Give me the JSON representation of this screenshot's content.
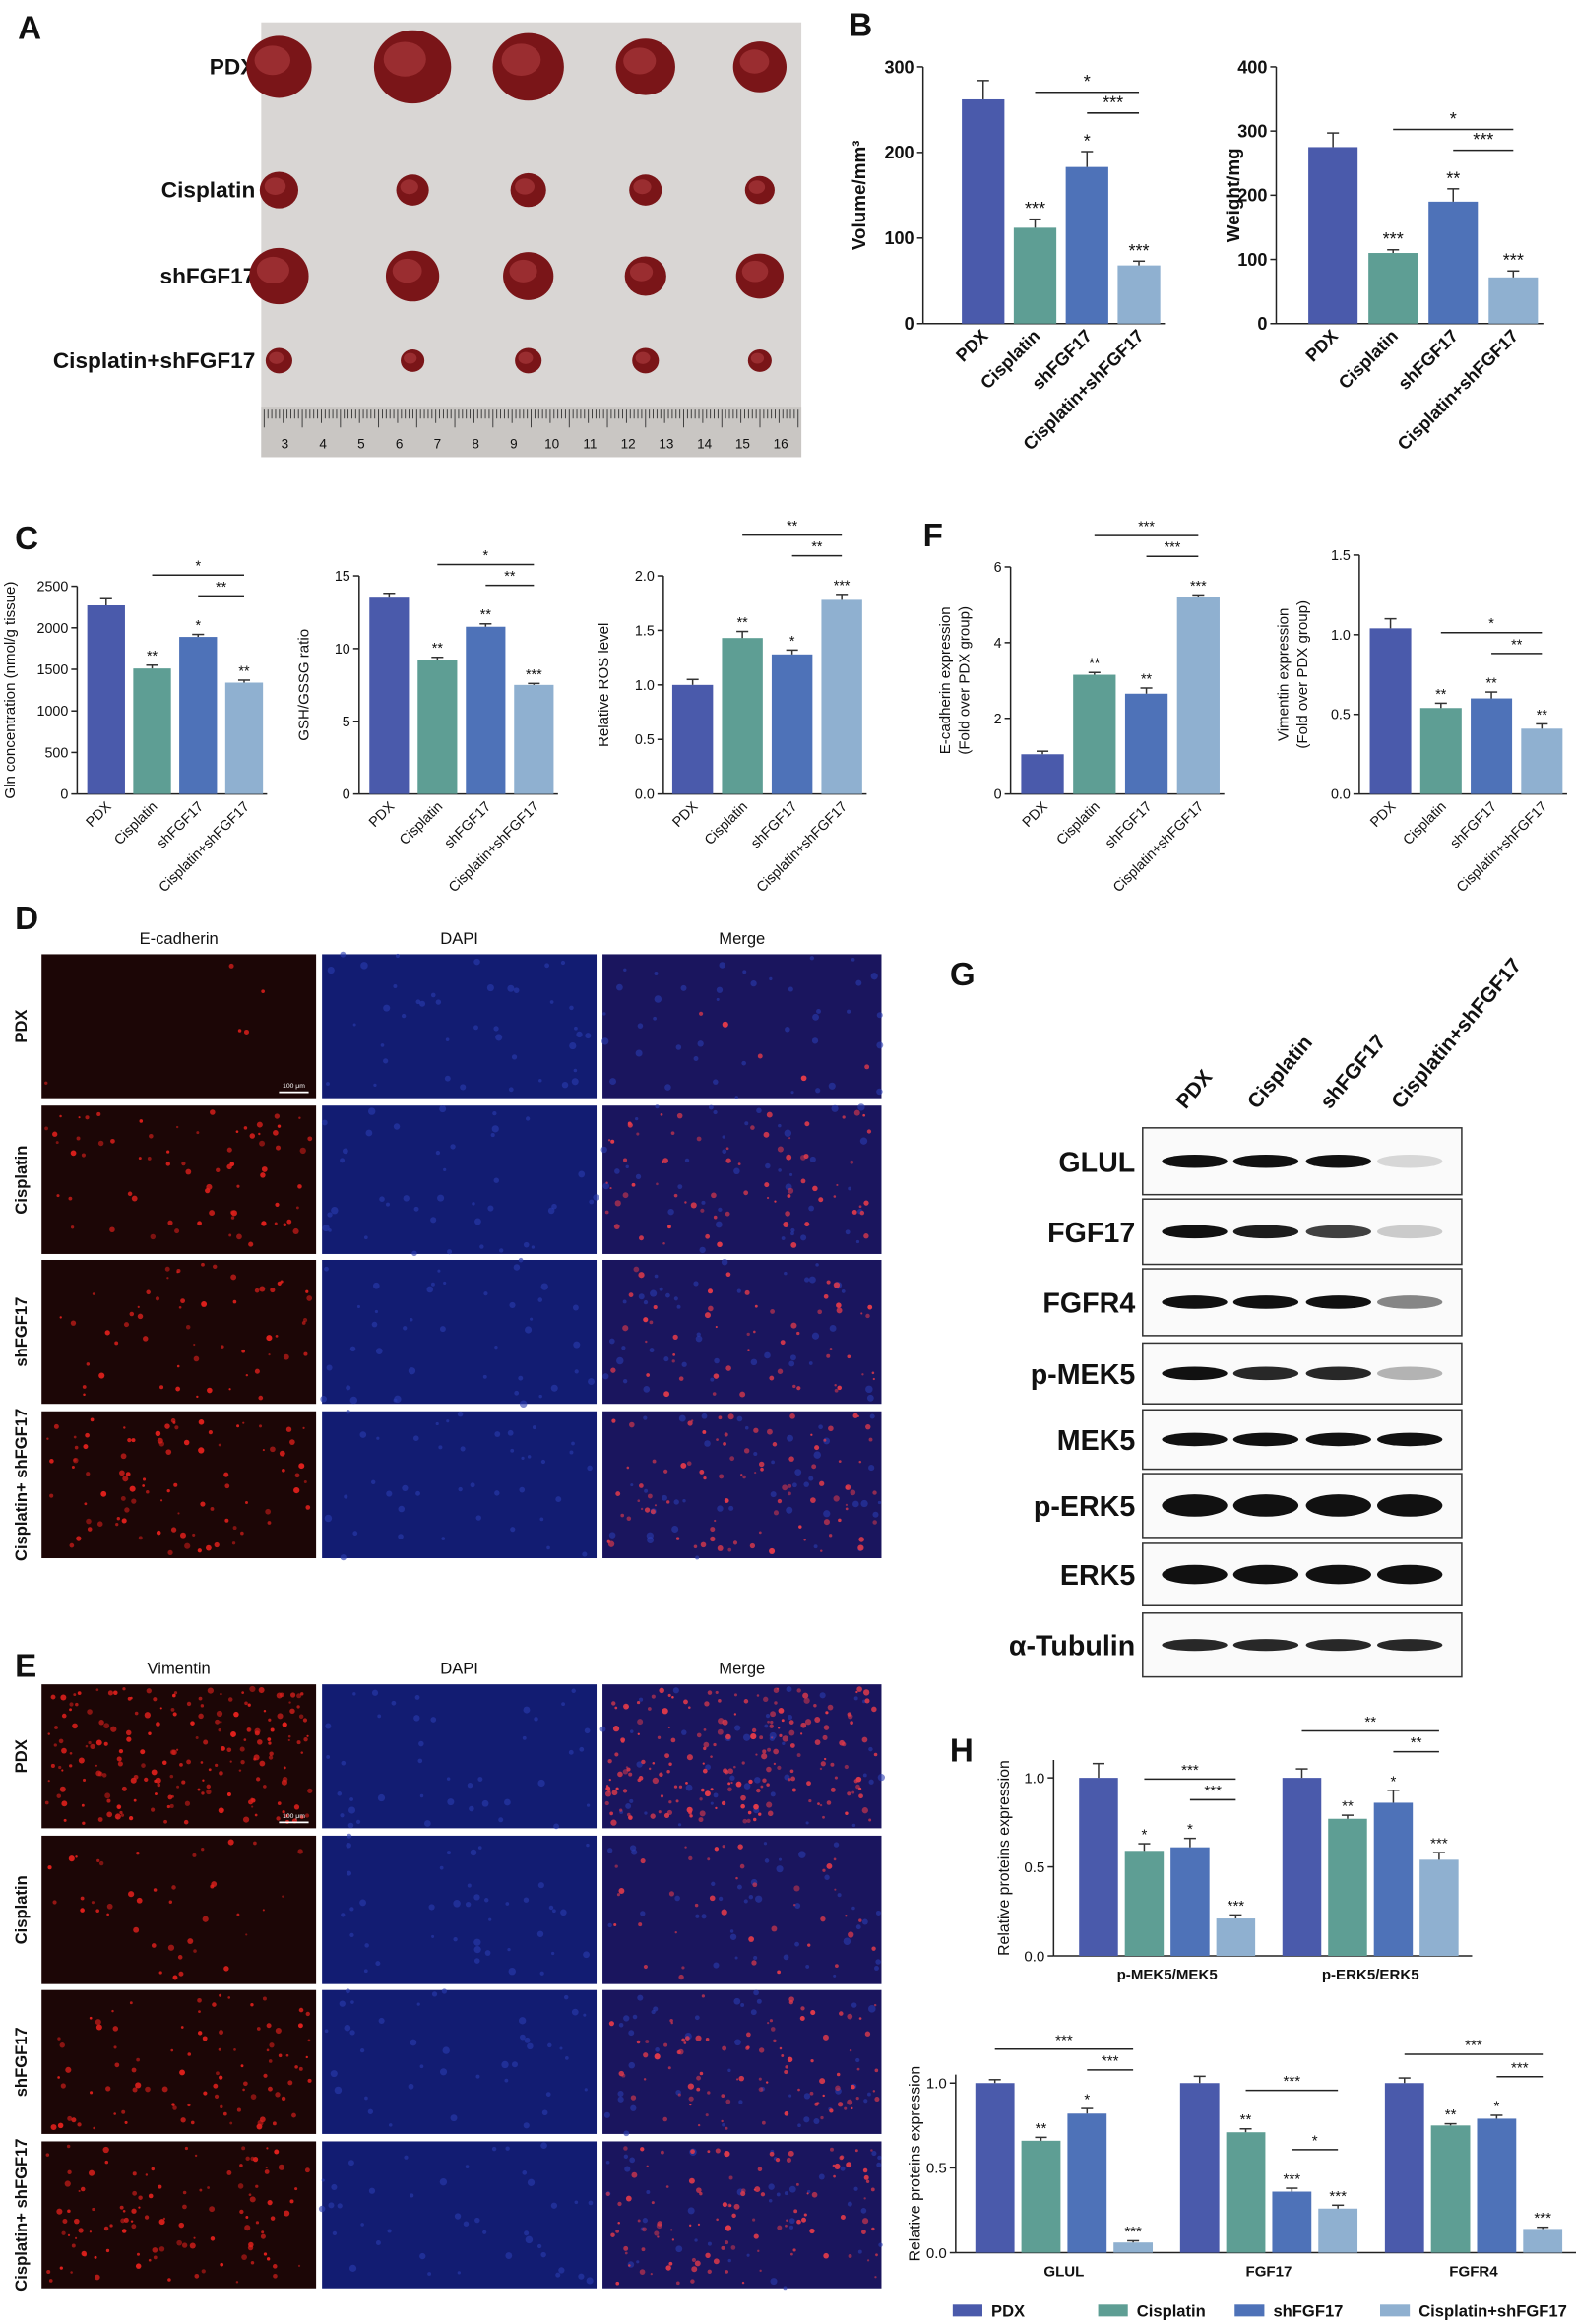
{
  "panel_letters": [
    "A",
    "B",
    "C",
    "F",
    "D",
    "G",
    "E",
    "H"
  ],
  "panel_a": {
    "rows": [
      "PDX",
      "Cisplatin",
      "shFGF17",
      "Cisplatin+shFGF17"
    ],
    "ruler": [
      3,
      4,
      5,
      6,
      7,
      8,
      9,
      10,
      11,
      12,
      13,
      14,
      15,
      16
    ]
  },
  "panel_d": {
    "columns": [
      "E-cadherin",
      "DAPI",
      "Merge"
    ],
    "rows": [
      "PDX",
      "Cisplatin",
      "shFGF17",
      "Cisplatin+ shFGF17"
    ],
    "scale_bar": "100 μm"
  },
  "panel_e": {
    "columns": [
      "Vimentin",
      "DAPI",
      "Merge"
    ],
    "rows": [
      "PDX",
      "Cisplatin",
      "shFGF17",
      "Cisplatin+ shFGF17"
    ],
    "scale_bar": "100 μm"
  },
  "panel_g": {
    "lanes": [
      "PDX",
      "Cisplatin",
      "shFGF17",
      "Cisplatin+shFGF17"
    ],
    "proteins": [
      "GLUL",
      "FGF17",
      "FGFR4",
      "p-MEK5",
      "MEK5",
      "p-ERK5",
      "ERK5",
      "α-Tubulin"
    ]
  },
  "chart_data": [
    {
      "type": "bar",
      "ylabel": [
        "Volume/mm³"
      ],
      "categories": [
        "PDX",
        "Cisplatin",
        "shFGF17",
        "Cisplatin+shFGF17"
      ],
      "values": [
        262,
        112,
        183,
        68
      ],
      "errors": [
        22,
        10,
        18,
        5
      ],
      "colors": [
        "#4a5aab",
        "#5e9e94",
        "#4e72b8",
        "#8fb0d0"
      ],
      "ylim": [
        0,
        300
      ],
      "yticks": [
        0,
        100,
        200,
        300
      ],
      "bar_labels": [
        null,
        "***",
        "*",
        "***"
      ],
      "brackets": [
        {
          "from": 1,
          "to": 3,
          "label": "*"
        },
        {
          "from": 2,
          "to": 3,
          "label": "***"
        }
      ]
    },
    {
      "type": "bar",
      "ylabel": [
        "Weight/mg"
      ],
      "categories": [
        "PDX",
        "Cisplatin",
        "shFGF17",
        "Cisplatin+shFGF17"
      ],
      "values": [
        275,
        110,
        190,
        72
      ],
      "errors": [
        22,
        5,
        20,
        10
      ],
      "colors": [
        "#4a5aab",
        "#5e9e94",
        "#4e72b8",
        "#8fb0d0"
      ],
      "ylim": [
        0,
        400
      ],
      "yticks": [
        0,
        100,
        200,
        300,
        400
      ],
      "bar_labels": [
        null,
        "***",
        "**",
        "***"
      ],
      "brackets": [
        {
          "from": 1,
          "to": 3,
          "label": "*"
        },
        {
          "from": 2,
          "to": 3,
          "label": "***"
        }
      ]
    },
    {
      "type": "bar",
      "ylabel": [
        "Gln concentration (nmol/g tissue)"
      ],
      "categories": [
        "PDX",
        "Cisplatin",
        "shFGF17",
        "Cisplatin+shFGF17"
      ],
      "values": [
        2270,
        1510,
        1890,
        1340
      ],
      "errors": [
        80,
        40,
        30,
        30
      ],
      "colors": [
        "#4a5aab",
        "#5e9e94",
        "#4e72b8",
        "#8fb0d0"
      ],
      "ylim": [
        0,
        2500
      ],
      "yticks": [
        0,
        500,
        1000,
        1500,
        2000,
        2500
      ],
      "bar_labels": [
        null,
        "**",
        "*",
        "**"
      ],
      "brackets": [
        {
          "from": 1,
          "to": 3,
          "label": "*"
        },
        {
          "from": 2,
          "to": 3,
          "label": "**"
        }
      ]
    },
    {
      "type": "bar",
      "ylabel": [
        "GSH/GSSG ratio"
      ],
      "categories": [
        "PDX",
        "Cisplatin",
        "shFGF17",
        "Cisplatin+shFGF17"
      ],
      "values": [
        13.5,
        9.2,
        11.5,
        7.5
      ],
      "errors": [
        0.3,
        0.2,
        0.2,
        0.1
      ],
      "colors": [
        "#4a5aab",
        "#5e9e94",
        "#4e72b8",
        "#8fb0d0"
      ],
      "ylim": [
        0,
        15
      ],
      "yticks": [
        0,
        5,
        10,
        15
      ],
      "bar_labels": [
        null,
        "**",
        "**",
        "***"
      ],
      "brackets": [
        {
          "from": 1,
          "to": 3,
          "label": "*"
        },
        {
          "from": 2,
          "to": 3,
          "label": "**"
        }
      ]
    },
    {
      "type": "bar",
      "ylabel": [
        "Relative ROS level"
      ],
      "categories": [
        "PDX",
        "Cisplatin",
        "shFGF17",
        "Cisplatin+shFGF17"
      ],
      "values": [
        1.0,
        1.43,
        1.28,
        1.78
      ],
      "errors": [
        0.05,
        0.06,
        0.04,
        0.05
      ],
      "colors": [
        "#4a5aab",
        "#5e9e94",
        "#4e72b8",
        "#8fb0d0"
      ],
      "ylim": [
        0,
        2
      ],
      "yticks": [
        {
          "value": 0,
          "label": "0.0"
        },
        0.5,
        {
          "value": 1,
          "label": "1.0"
        },
        1.5,
        {
          "value": 2,
          "label": "2.0"
        }
      ],
      "bar_labels": [
        null,
        "**",
        "*",
        "***"
      ],
      "brackets": [
        {
          "from": 1,
          "to": 3,
          "label": "**"
        },
        {
          "from": 2,
          "to": 3,
          "label": "**"
        }
      ]
    },
    {
      "type": "bar",
      "ylabel": [
        "E-cadherin expression",
        "(Fold over PDX group)"
      ],
      "categories": [
        "PDX",
        "Cisplatin",
        "shFGF17",
        "Cisplatin+shFGF17"
      ],
      "values": [
        1.05,
        3.15,
        2.65,
        5.2
      ],
      "errors": [
        0.08,
        0.06,
        0.15,
        0.06
      ],
      "colors": [
        "#4a5aab",
        "#5e9e94",
        "#4e72b8",
        "#8fb0d0"
      ],
      "ylim": [
        0,
        6
      ],
      "yticks": [
        0,
        2,
        4,
        6
      ],
      "bar_labels": [
        null,
        "**",
        "**",
        "***"
      ],
      "brackets": [
        {
          "from": 1,
          "to": 3,
          "label": "***"
        },
        {
          "from": 2,
          "to": 3,
          "label": "***"
        }
      ]
    },
    {
      "type": "bar",
      "ylabel": [
        "Vimentin expression",
        "(Fold over PDX group)"
      ],
      "categories": [
        "PDX",
        "Cisplatin",
        "shFGF17",
        "Cisplatin+shFGF17"
      ],
      "values": [
        1.04,
        0.54,
        0.6,
        0.41
      ],
      "errors": [
        0.06,
        0.03,
        0.04,
        0.03
      ],
      "colors": [
        "#4a5aab",
        "#5e9e94",
        "#4e72b8",
        "#8fb0d0"
      ],
      "ylim": [
        0,
        1.5
      ],
      "yticks": [
        {
          "value": 0,
          "label": "0.0"
        },
        0.5,
        {
          "value": 1,
          "label": "1.0"
        },
        1.5
      ],
      "bar_labels": [
        null,
        "**",
        "**",
        "**"
      ],
      "brackets": [
        {
          "from": 1,
          "to": 3,
          "label": "*"
        },
        {
          "from": 2,
          "to": 3,
          "label": "**"
        }
      ]
    },
    {
      "type": "grouped_bar",
      "ylabel": [
        "Relative proteins expression"
      ],
      "categories": [
        "p-MEK5/MEK5",
        "p-ERK5/ERK5"
      ],
      "series": [
        {
          "color": "#4a5aab",
          "values": [
            1.0,
            1.0
          ],
          "errors": [
            0.08,
            0.05
          ],
          "labels": [
            null,
            null
          ]
        },
        {
          "color": "#5e9e94",
          "values": [
            0.59,
            0.77
          ],
          "errors": [
            0.04,
            0.02
          ],
          "labels": [
            "*",
            "**"
          ]
        },
        {
          "color": "#4e72b8",
          "values": [
            0.61,
            0.86
          ],
          "errors": [
            0.05,
            0.07
          ],
          "labels": [
            "*",
            "*"
          ]
        },
        {
          "color": "#8fb0d0",
          "values": [
            0.21,
            0.54
          ],
          "errors": [
            0.02,
            0.04
          ],
          "labels": [
            "***",
            "***"
          ]
        }
      ],
      "ylim": [
        0,
        1.1
      ],
      "yticks": [
        {
          "value": 0,
          "label": "0.0"
        },
        0.5,
        {
          "value": 1,
          "label": "1.0"
        }
      ],
      "brackets": [
        {
          "group": 0,
          "from": 1,
          "to": 3,
          "label": "***"
        },
        {
          "group": 0,
          "from": 2,
          "to": 3,
          "label": "***"
        },
        {
          "group": 1,
          "from": 0,
          "to": 3,
          "label": "**"
        },
        {
          "group": 1,
          "from": 2,
          "to": 3,
          "label": "**"
        }
      ]
    },
    {
      "type": "grouped_bar",
      "ylabel": [
        "Relative proteins expression"
      ],
      "categories": [
        "GLUL",
        "FGF17",
        "FGFR4"
      ],
      "series": [
        {
          "name": "PDX",
          "color": "#4a5aab",
          "values": [
            1.0,
            1.0,
            1.0
          ],
          "errors": [
            0.02,
            0.04,
            0.03
          ],
          "labels": [
            null,
            null,
            null
          ]
        },
        {
          "name": "Cisplatin",
          "color": "#5e9e94",
          "values": [
            0.66,
            0.71,
            0.75
          ],
          "errors": [
            0.02,
            0.02,
            0.01
          ],
          "labels": [
            "**",
            "**",
            "**"
          ]
        },
        {
          "name": "shFGF17",
          "color": "#4e72b8",
          "values": [
            0.82,
            0.36,
            0.79
          ],
          "errors": [
            0.03,
            0.02,
            0.02
          ],
          "labels": [
            "*",
            "***",
            "*"
          ]
        },
        {
          "name": "Cisplatin+shFGF17",
          "color": "#8fb0d0",
          "values": [
            0.06,
            0.26,
            0.14
          ],
          "errors": [
            0.01,
            0.02,
            0.01
          ],
          "labels": [
            "***",
            "***",
            "***"
          ]
        }
      ],
      "ylim": [
        0,
        1.05
      ],
      "yticks": [
        {
          "value": 0,
          "label": "0.0"
        },
        0.5,
        {
          "value": 1,
          "label": "1.0"
        }
      ],
      "legend": "bottom",
      "brackets": [
        {
          "group": 0,
          "from": 0,
          "to": 3,
          "label": "***"
        },
        {
          "group": 0,
          "from": 2,
          "to": 3,
          "label": "***"
        },
        {
          "group": 1,
          "from": 1,
          "to": 3,
          "label": "***"
        },
        {
          "group": 1,
          "from": 2,
          "to": 3,
          "label": "*"
        },
        {
          "group": 2,
          "from": 0,
          "to": 3,
          "label": "***"
        },
        {
          "group": 2,
          "from": 2,
          "to": 3,
          "label": "***"
        }
      ]
    }
  ]
}
